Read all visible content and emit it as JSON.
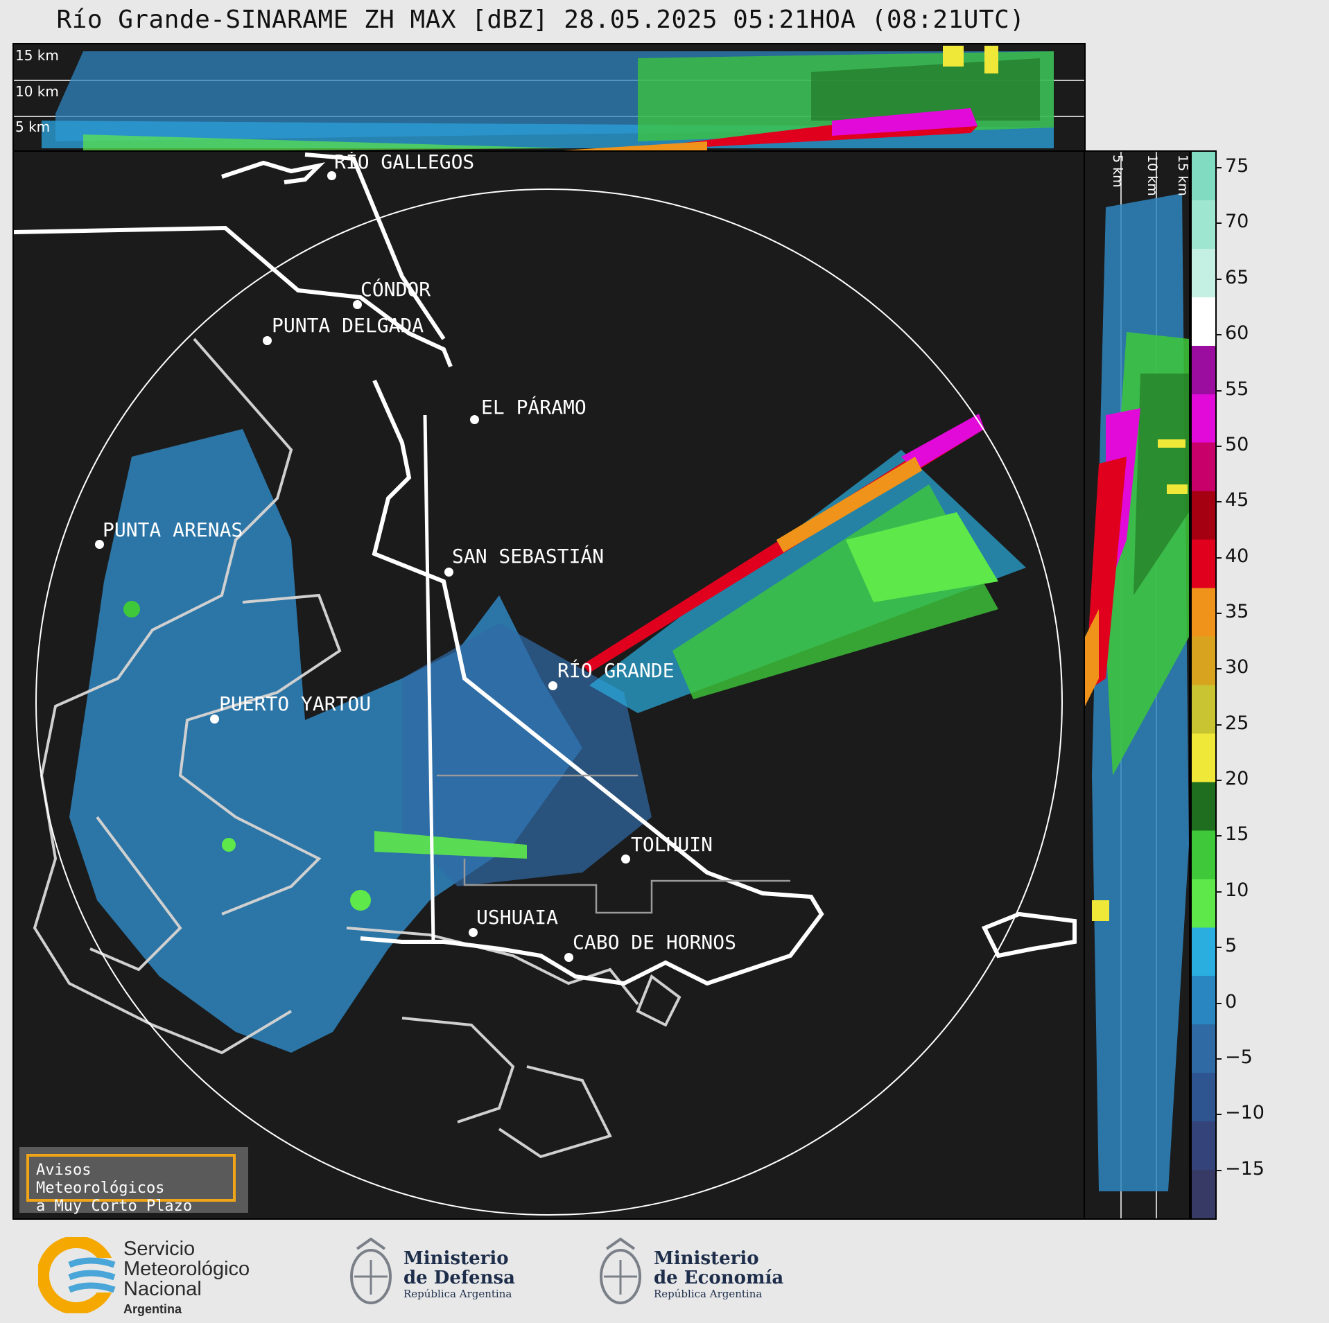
{
  "title": "Río Grande-SINARAME ZH MAX [dBZ] 28.05.2025 05:21HOA (08:21UTC)",
  "top_panel": {
    "height_labels": [
      "15 km",
      "10 km",
      "5 km"
    ]
  },
  "side_panel": {
    "height_labels": [
      "5 km",
      "10 km",
      "15 km"
    ]
  },
  "colorbar": {
    "ticks": [
      "75",
      "70",
      "65",
      "60",
      "55",
      "50",
      "45",
      "40",
      "35",
      "30",
      "25",
      "20",
      "15",
      "10",
      "5",
      "0",
      "−5",
      "−10",
      "−15"
    ],
    "colors": [
      "#80dbc0",
      "#9ee6cf",
      "#c3f0e3",
      "#ffffff",
      "#9b0d9e",
      "#e10ad8",
      "#c8006a",
      "#a50012",
      "#e0001e",
      "#f0931a",
      "#d8a420",
      "#c8c432",
      "#f0e838",
      "#1f6e1f",
      "#3ec83a",
      "#5ee84a",
      "#2aaee0",
      "#2a86c0",
      "#2f6aa5",
      "#2f5590",
      "#34447a",
      "#383a66"
    ]
  },
  "cities": [
    {
      "name": "RÍO GALLEGOS"
    },
    {
      "name": "CÓNDOR"
    },
    {
      "name": "PUNTA DELGADA"
    },
    {
      "name": "EL PÁRAMO"
    },
    {
      "name": "SAN SEBASTIÁN"
    },
    {
      "name": "PUNTA ARENAS"
    },
    {
      "name": "RÍO GRANDE"
    },
    {
      "name": "PUERTO YARTOU"
    },
    {
      "name": "TOLHUIN"
    },
    {
      "name": "USHUAIA"
    },
    {
      "name": "CABO DE HORNOS"
    }
  ],
  "avisos": {
    "line1": "Avisos Meteorológicos",
    "line2": "a Muy Corto Plazo"
  },
  "footer": {
    "smn": {
      "line1": "Servicio",
      "line2": "Meteorológico",
      "line3": "Nacional",
      "line4": "Argentina"
    },
    "defensa": {
      "line1": "Ministerio",
      "line2": "de Defensa",
      "line3": "República Argentina"
    },
    "economia": {
      "line1": "Ministerio",
      "line2": "de Economía",
      "line3": "República Argentina"
    }
  }
}
